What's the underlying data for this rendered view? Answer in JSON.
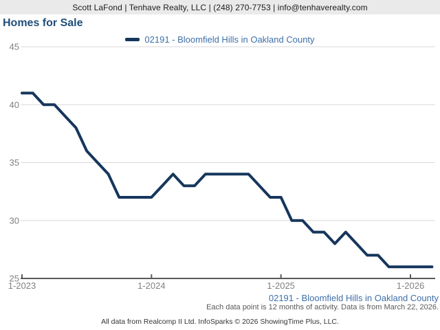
{
  "header": {
    "contact_line": "Scott LaFond | Tenhave Realty, LLC | (248) 270-7753 | info@tenhaverealty.com"
  },
  "title": "Homes for Sale",
  "legend": {
    "label": "02191 - Bloomfield Hills in Oakland County"
  },
  "chart_data": {
    "type": "line",
    "title": "Homes for Sale",
    "x_labels": [
      "1-2023",
      "2-2023",
      "3-2023",
      "4-2023",
      "5-2023",
      "6-2023",
      "7-2023",
      "8-2023",
      "9-2023",
      "10-2023",
      "11-2023",
      "12-2023",
      "1-2024",
      "2-2024",
      "3-2024",
      "4-2024",
      "5-2024",
      "6-2024",
      "7-2024",
      "8-2024",
      "9-2024",
      "10-2024",
      "11-2024",
      "12-2024",
      "1-2025",
      "2-2025",
      "3-2025",
      "4-2025",
      "5-2025",
      "6-2025",
      "7-2025",
      "8-2025",
      "9-2025",
      "10-2025",
      "11-2025",
      "12-2025",
      "1-2026",
      "2-2026",
      "3-2026"
    ],
    "series": [
      {
        "name": "02191 - Bloomfield Hills in Oakland County",
        "color": "#16365c",
        "values": [
          41,
          41,
          40,
          40,
          39,
          38,
          36,
          35,
          34,
          32,
          32,
          32,
          32,
          33,
          34,
          33,
          33,
          34,
          34,
          34,
          34,
          34,
          33,
          32,
          32,
          30,
          30,
          29,
          29,
          28,
          29,
          28,
          27,
          27,
          26,
          26,
          26,
          26,
          26
        ]
      }
    ],
    "ylim": [
      25,
      45
    ],
    "yticks": [
      25,
      30,
      35,
      40,
      45
    ],
    "xticks": [
      {
        "label": "1-2023",
        "index": 0
      },
      {
        "label": "1-2024",
        "index": 12
      },
      {
        "label": "1-2025",
        "index": 24
      },
      {
        "label": "1-2026",
        "index": 36
      }
    ],
    "grid": true,
    "legend_position": "top-center",
    "colors": {
      "gridline": "#d9d9d9",
      "axis_line": "#595959",
      "tick_label": "#808080"
    }
  },
  "subfooter": {
    "series_label": "02191 - Bloomfield Hills in Oakland County",
    "data_note": "Each data point is 12 months of activity. Data is from March 22, 2026.",
    "attribution": "All data from Realcomp II Ltd. InfoSparks © 2026 ShowingTime Plus, LLC."
  }
}
